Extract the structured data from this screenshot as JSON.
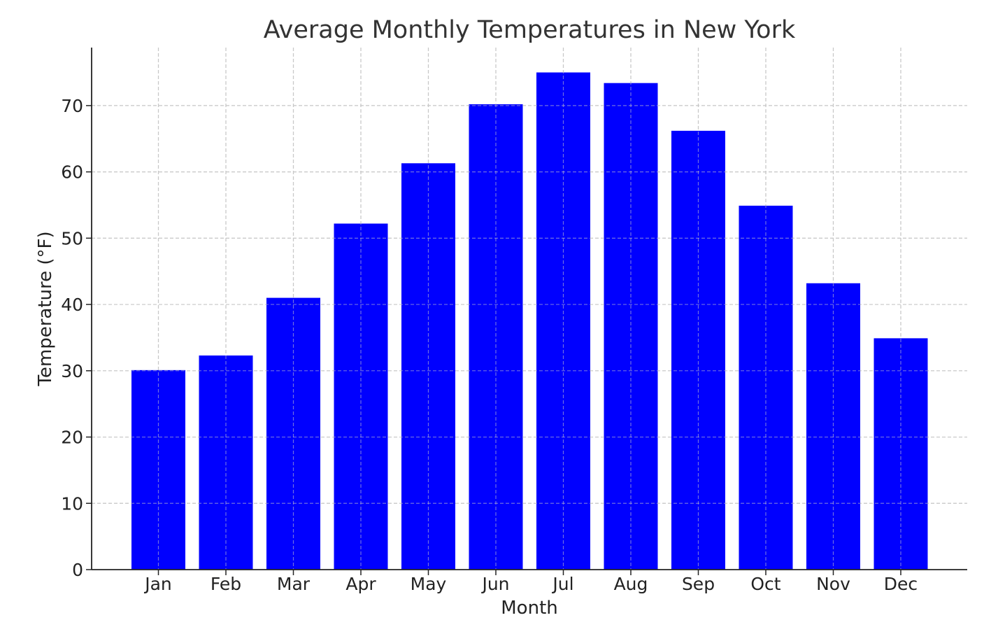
{
  "chart_data": {
    "type": "bar",
    "title": "Average Monthly Temperatures in New York",
    "xlabel": "Month",
    "ylabel": "Temperature (°F)",
    "categories": [
      "Jan",
      "Feb",
      "Mar",
      "Apr",
      "May",
      "Jun",
      "Jul",
      "Aug",
      "Sep",
      "Oct",
      "Nov",
      "Dec"
    ],
    "values": [
      30.1,
      32.3,
      41.0,
      52.2,
      61.3,
      70.2,
      75.0,
      73.4,
      66.2,
      54.9,
      43.2,
      34.9
    ],
    "ylim": [
      0,
      78.75
    ],
    "yticks": [
      0,
      10,
      20,
      30,
      40,
      50,
      60,
      70
    ],
    "grid": true,
    "bar_color": "#0000ff"
  }
}
